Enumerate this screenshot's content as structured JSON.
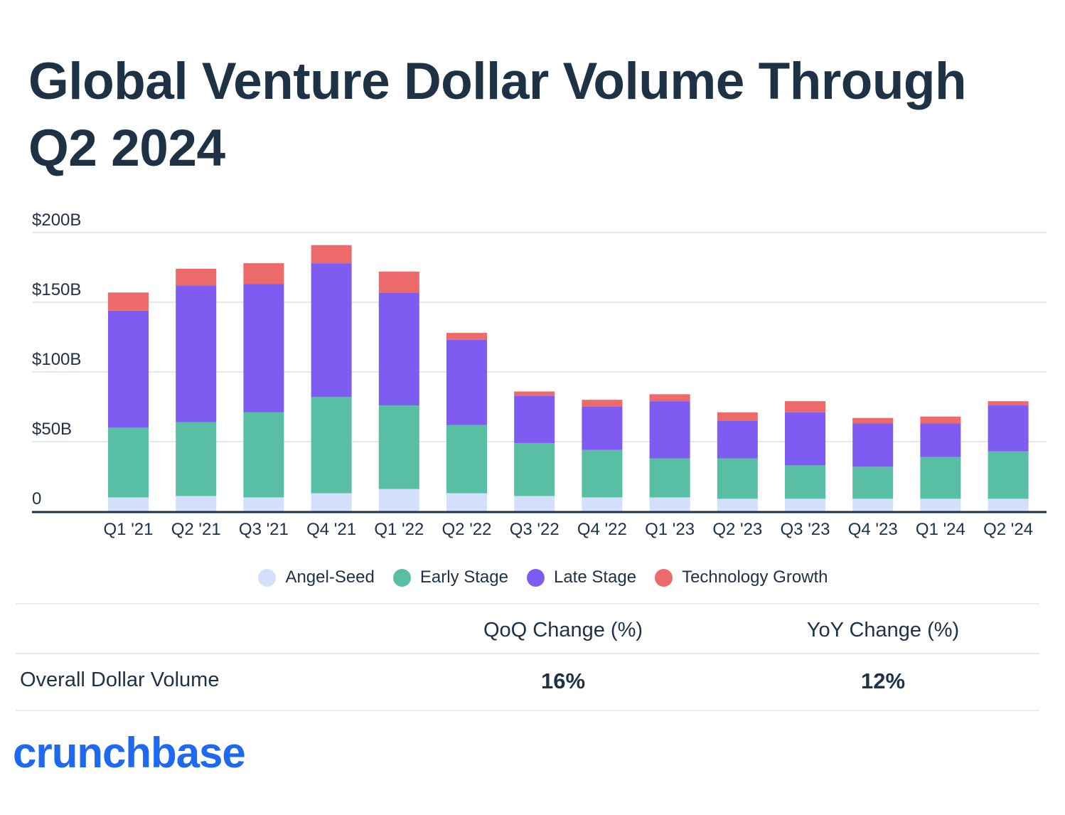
{
  "title": "Global Venture Dollar Volume Through Q2 2024",
  "chart_data": {
    "type": "bar",
    "stacked": true,
    "categories": [
      "Q1 '21",
      "Q2 '21",
      "Q3 '21",
      "Q4 '21",
      "Q1 '22",
      "Q2 '22",
      "Q3 '22",
      "Q4 '22",
      "Q1 '23",
      "Q2 '23",
      "Q3 '23",
      "Q4 '23",
      "Q1 '24",
      "Q2 '24"
    ],
    "series": [
      {
        "name": "Angel-Seed",
        "color": "#d4e0fb",
        "values": [
          10,
          11,
          10,
          13,
          16,
          13,
          11,
          10,
          10,
          9,
          9,
          9,
          9,
          9
        ]
      },
      {
        "name": "Early Stage",
        "color": "#58bea4",
        "values": [
          50,
          53,
          61,
          69,
          60,
          49,
          38,
          34,
          28,
          29,
          24,
          23,
          30,
          34
        ]
      },
      {
        "name": "Late Stage",
        "color": "#7f5cf1",
        "values": [
          84,
          98,
          92,
          96,
          81,
          61,
          34,
          31,
          41,
          27,
          38,
          31,
          24,
          33
        ]
      },
      {
        "name": "Technology Growth",
        "color": "#ed6a6a",
        "values": [
          13,
          12,
          15,
          13,
          15,
          5,
          3,
          5,
          5,
          6,
          8,
          4,
          5,
          3
        ]
      }
    ],
    "y_ticks": [
      "0",
      "$50B",
      "$100B",
      "$150B",
      "$200B"
    ],
    "ylim": [
      0,
      200
    ],
    "grid": true,
    "legend_position": "bottom-center"
  },
  "table": {
    "headers": [
      "",
      "QoQ Change (%)",
      "YoY Change (%)"
    ],
    "rows": [
      {
        "label": "Overall Dollar Volume",
        "qoq": "16%",
        "yoy": "12%"
      }
    ]
  },
  "logo": "crunchbase"
}
